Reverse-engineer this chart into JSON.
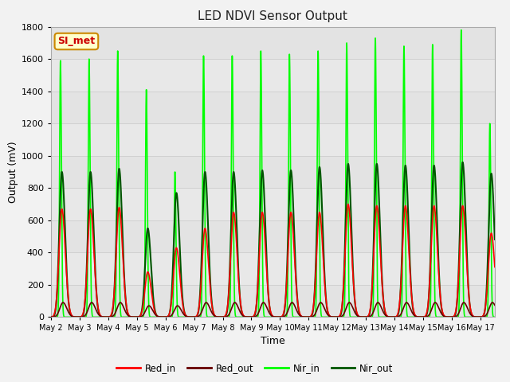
{
  "title": "LED NDVI Sensor Output",
  "xlabel": "Time",
  "ylabel": "Output (mV)",
  "ylim": [
    0,
    1800
  ],
  "xlim_days": [
    1.05,
    16.5
  ],
  "grid_color": "#d0d0d0",
  "bg_color": "#e8e8e8",
  "fig_bg": "#f2f2f2",
  "annotation_text": "SI_met",
  "annotation_bg": "#ffffcc",
  "annotation_border": "#cc8800",
  "annotation_text_color": "#cc0000",
  "lines": {
    "Red_in": {
      "color": "#ff0000",
      "lw": 1.2
    },
    "Red_out": {
      "color": "#660000",
      "lw": 1.2
    },
    "Nir_in": {
      "color": "#00ff00",
      "lw": 1.2
    },
    "Nir_out": {
      "color": "#005500",
      "lw": 1.5
    }
  },
  "tick_labels": [
    "May 2",
    "May 3",
    "May 4",
    "May 5",
    "May 6",
    "May 7",
    "May 8",
    "May 9",
    "May 10",
    "May 11",
    "May 12",
    "May 13",
    "May 14",
    "May 15",
    "May 16",
    "May 17"
  ],
  "tick_positions": [
    1,
    2,
    3,
    4,
    5,
    6,
    7,
    8,
    9,
    10,
    11,
    12,
    13,
    14,
    15,
    16
  ],
  "red_in_peaks": [
    670,
    670,
    680,
    280,
    430,
    550,
    650,
    650,
    650,
    650,
    700,
    690,
    690,
    690,
    690,
    520
  ],
  "red_out_peaks": [
    90,
    90,
    90,
    70,
    70,
    90,
    90,
    90,
    90,
    90,
    90,
    90,
    90,
    90,
    90,
    90
  ],
  "nir_in_peaks": [
    1590,
    1600,
    1650,
    1410,
    900,
    1620,
    1620,
    1650,
    1630,
    1650,
    1700,
    1730,
    1680,
    1690,
    1780,
    1200
  ],
  "nir_out_peaks": [
    900,
    900,
    920,
    550,
    770,
    900,
    900,
    910,
    910,
    930,
    950,
    950,
    940,
    940,
    960,
    890
  ]
}
